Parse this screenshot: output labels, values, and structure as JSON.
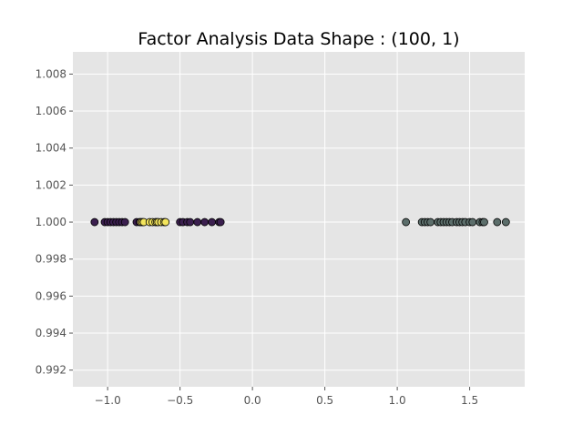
{
  "chart_data": {
    "type": "scatter",
    "title": "Factor Analysis Data Shape : (100, 1)",
    "xlabel": "",
    "ylabel": "",
    "xlim": [
      -1.24,
      1.88
    ],
    "ylim": [
      0.9911,
      1.0092
    ],
    "grid": true,
    "background": "#e5e5e5",
    "grid_color": "#ffffff",
    "marker_edge_color": "#000000",
    "x_ticks": [
      {
        "value": -1.0,
        "label": "−1.0"
      },
      {
        "value": -0.5,
        "label": "−0.5"
      },
      {
        "value": 0.0,
        "label": "0.0"
      },
      {
        "value": 0.5,
        "label": "0.5"
      },
      {
        "value": 1.0,
        "label": "1.0"
      },
      {
        "value": 1.5,
        "label": "1.5"
      }
    ],
    "y_ticks": [
      {
        "value": 0.992,
        "label": "0.992"
      },
      {
        "value": 0.994,
        "label": "0.994"
      },
      {
        "value": 0.996,
        "label": "0.996"
      },
      {
        "value": 0.998,
        "label": "0.998"
      },
      {
        "value": 1.0,
        "label": "1.000"
      },
      {
        "value": 1.002,
        "label": "1.002"
      },
      {
        "value": 1.004,
        "label": "1.004"
      },
      {
        "value": 1.006,
        "label": "1.006"
      },
      {
        "value": 1.008,
        "label": "1.008"
      }
    ],
    "series": [
      {
        "color": "#3b1f4f",
        "y": 1.0,
        "x": [
          -1.09,
          -1.02,
          -1.0,
          -0.98,
          -0.96,
          -0.94,
          -0.92,
          -0.9,
          -0.88,
          -0.8,
          -0.78,
          -0.5,
          -0.48,
          -0.45,
          -0.43,
          -0.38,
          -0.33,
          -0.28,
          -0.23,
          -0.22
        ]
      },
      {
        "color": "#f3e55d",
        "y": 1.0,
        "x": [
          -0.77,
          -0.76,
          -0.75,
          -0.71,
          -0.69,
          -0.67,
          -0.66,
          -0.65,
          -0.63,
          -0.61,
          -0.6
        ]
      },
      {
        "color": "#5c6e6b",
        "y": 1.0,
        "x": [
          1.06,
          1.17,
          1.19,
          1.21,
          1.23,
          1.28,
          1.3,
          1.32,
          1.34,
          1.36,
          1.38,
          1.41,
          1.43,
          1.45,
          1.47,
          1.5,
          1.52,
          1.57,
          1.59,
          1.6,
          1.69,
          1.75
        ]
      }
    ]
  }
}
